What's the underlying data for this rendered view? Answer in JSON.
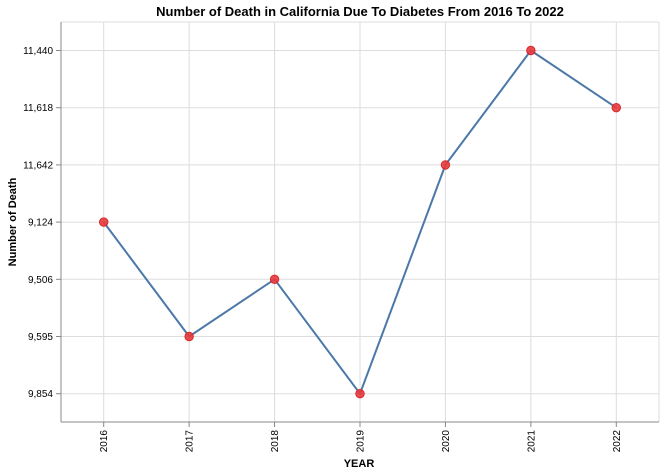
{
  "chart_data": {
    "type": "line",
    "title": "Number of Death in California Due To Diabetes From 2016 To 2022",
    "xlabel": "YEAR",
    "ylabel": "Number of Death",
    "categories": [
      "2016",
      "2017",
      "2018",
      "2019",
      "2020",
      "2021",
      "2022"
    ],
    "y_axis_labels": [
      "11,440",
      "11,618",
      "11,642",
      "9,124",
      "9,506",
      "9,595",
      "9,854"
    ],
    "y_axis_order": "top-to-bottom",
    "series": [
      {
        "values": [
          "9,124",
          "9,595",
          "9,506",
          "9,854",
          "11,642",
          "11,440",
          "11,618"
        ]
      }
    ],
    "grid": true,
    "legend": "none",
    "colors": {
      "line": "#4c78a8",
      "point": "#e8383d",
      "point_stroke": "#d62728"
    }
  }
}
